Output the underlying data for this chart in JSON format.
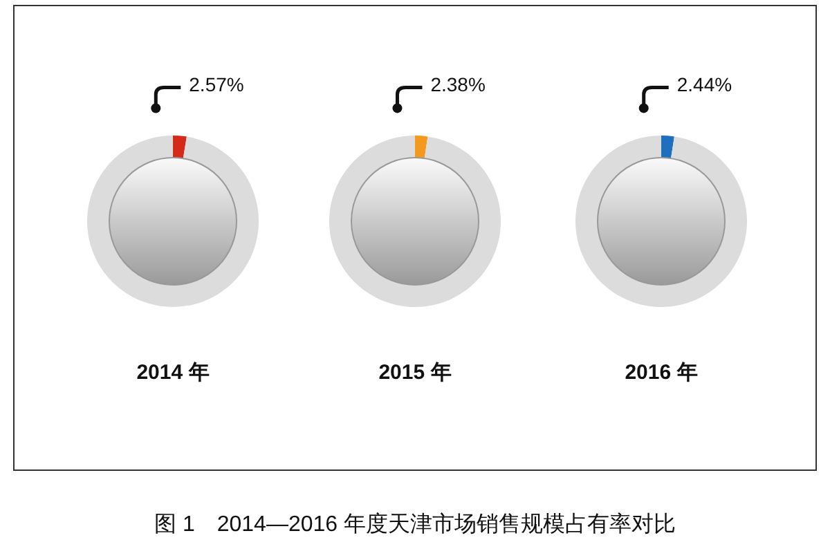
{
  "chart_data": [
    {
      "type": "donut",
      "title": "2014 年",
      "categories": [
        null,
        null
      ],
      "values": [
        2.57,
        97.43
      ],
      "colors": [
        "#d42a1a",
        "#dcdcdc"
      ],
      "value_labels": [
        "2.57%",
        null
      ],
      "annotations": [
        "图 1　2014—2016 年度天津市场销售规模占有率对比"
      ]
    },
    {
      "type": "donut",
      "title": "2015 年",
      "categories": [
        null,
        null
      ],
      "values": [
        2.38,
        97.62
      ],
      "colors": [
        "#f39a1e",
        "#dcdcdc"
      ],
      "value_labels": [
        "2.38%",
        null
      ]
    },
    {
      "type": "donut",
      "title": "2016 年",
      "categories": [
        null,
        null
      ],
      "values": [
        2.44,
        97.56
      ],
      "colors": [
        "#1f6fbf",
        "#dcdcdc"
      ],
      "value_labels": [
        "2.44%",
        null
      ]
    }
  ]
}
